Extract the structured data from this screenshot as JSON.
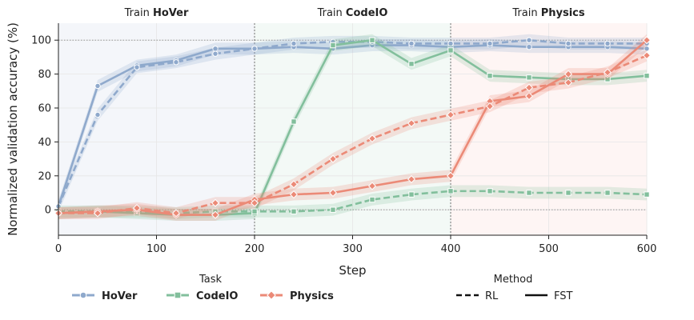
{
  "chart_data": {
    "type": "line",
    "xlabel": "Step",
    "ylabel": "Normalized validation accuracy (%)",
    "xlim": [
      0,
      600
    ],
    "ylim": [
      -15,
      110
    ],
    "x_ticks": [
      0,
      100,
      200,
      300,
      400,
      500,
      600
    ],
    "y_ticks": [
      0,
      20,
      40,
      60,
      80,
      100
    ],
    "grid": true,
    "phases": [
      {
        "prefix": "Train ",
        "name": "HoVer",
        "x_start": 0,
        "x_end": 200,
        "color": "#8fa9cc"
      },
      {
        "prefix": "Train ",
        "name": "CodeIO",
        "x_start": 200,
        "x_end": 400,
        "color": "#8cc3a6"
      },
      {
        "prefix": "Train ",
        "name": "Physics",
        "x_start": 400,
        "x_end": 600,
        "color": "#f4a191"
      }
    ],
    "series": [
      {
        "name": "HoVer",
        "method": "FST",
        "color": "#8fa9cc",
        "marker": "circle",
        "x": [
          0,
          40,
          80,
          120,
          160,
          200,
          240,
          280,
          320,
          360,
          400,
          440,
          480,
          520,
          560,
          600
        ],
        "y": [
          2,
          73,
          85,
          88,
          95,
          95,
          96,
          95,
          97,
          97,
          96,
          97,
          96,
          96,
          96,
          95
        ]
      },
      {
        "name": "HoVer",
        "method": "RL",
        "color": "#8fa9cc",
        "marker": "circle",
        "x": [
          0,
          40,
          80,
          120,
          160,
          200,
          240,
          280,
          320,
          360,
          400,
          440,
          480,
          520,
          560,
          600
        ],
        "y": [
          2,
          56,
          84,
          87,
          92,
          95,
          98,
          99,
          99,
          98,
          98,
          98,
          100,
          98,
          98,
          98
        ]
      },
      {
        "name": "CodeIO",
        "method": "FST",
        "color": "#82bf9c",
        "marker": "square",
        "x": [
          0,
          40,
          80,
          120,
          160,
          200,
          240,
          280,
          320,
          360,
          400,
          440,
          480,
          520,
          560,
          600
        ],
        "y": [
          -2,
          -1,
          -2,
          -3,
          -3,
          -2,
          52,
          97,
          100,
          86,
          94,
          79,
          78,
          77,
          77,
          79
        ]
      },
      {
        "name": "CodeIO",
        "method": "RL",
        "color": "#82bf9c",
        "marker": "square",
        "x": [
          0,
          40,
          80,
          120,
          160,
          200,
          240,
          280,
          320,
          360,
          400,
          440,
          480,
          520,
          560,
          600
        ],
        "y": [
          -1,
          -1,
          -1,
          -2,
          -1,
          -1,
          -1,
          0,
          6,
          9,
          11,
          11,
          10,
          10,
          10,
          9
        ]
      },
      {
        "name": "Physics",
        "method": "FST",
        "color": "#eb8a77",
        "marker": "diamond",
        "x": [
          0,
          40,
          80,
          120,
          160,
          200,
          240,
          280,
          320,
          360,
          400,
          440,
          480,
          520,
          560,
          600
        ],
        "y": [
          -2,
          -1,
          0,
          -3,
          -3,
          6,
          9,
          10,
          14,
          18,
          20,
          64,
          67,
          80,
          80,
          100
        ]
      },
      {
        "name": "Physics",
        "method": "RL",
        "color": "#eb8a77",
        "marker": "diamond",
        "x": [
          0,
          40,
          80,
          120,
          160,
          200,
          240,
          280,
          320,
          360,
          400,
          440,
          480,
          520,
          560,
          600
        ],
        "y": [
          -2,
          -2,
          1,
          -2,
          4,
          4,
          15,
          30,
          42,
          51,
          56,
          61,
          72,
          75,
          81,
          91
        ]
      }
    ],
    "legend": {
      "task_title": "Task",
      "task_entries": [
        {
          "label": "HoVer",
          "color": "#8fa9cc",
          "marker": "circle"
        },
        {
          "label": "CodeIO",
          "color": "#82bf9c",
          "marker": "square"
        },
        {
          "label": "Physics",
          "color": "#eb8a77",
          "marker": "diamond"
        }
      ],
      "method_title": "Method",
      "method_entries": [
        {
          "label": "RL",
          "dash": true
        },
        {
          "label": "FST",
          "dash": false
        }
      ],
      "placement": "bottom"
    }
  }
}
